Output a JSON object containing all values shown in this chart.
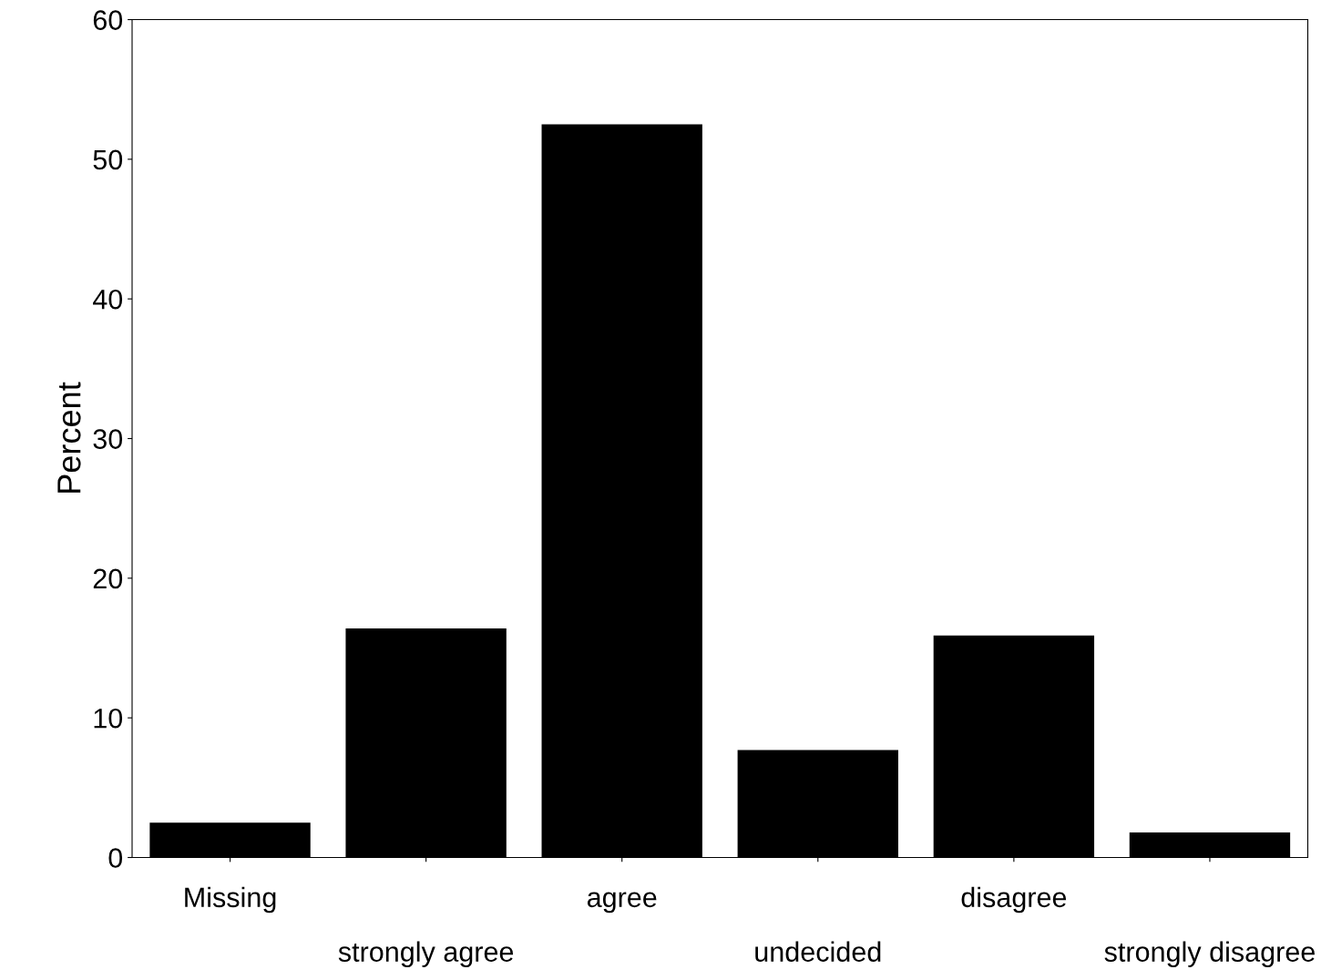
{
  "chart_data": {
    "type": "bar",
    "ylabel": "Percent",
    "categories": [
      "Missing",
      "strongly agree",
      "agree",
      "undecided",
      "disagree",
      "strongly disagree"
    ],
    "values": [
      2.5,
      16.4,
      52.5,
      7.7,
      15.9,
      1.8
    ],
    "color": "#000000",
    "ylim": [
      0,
      60
    ],
    "yticks": [
      0,
      10,
      20,
      30,
      40,
      50,
      60
    ],
    "grid": false
  }
}
